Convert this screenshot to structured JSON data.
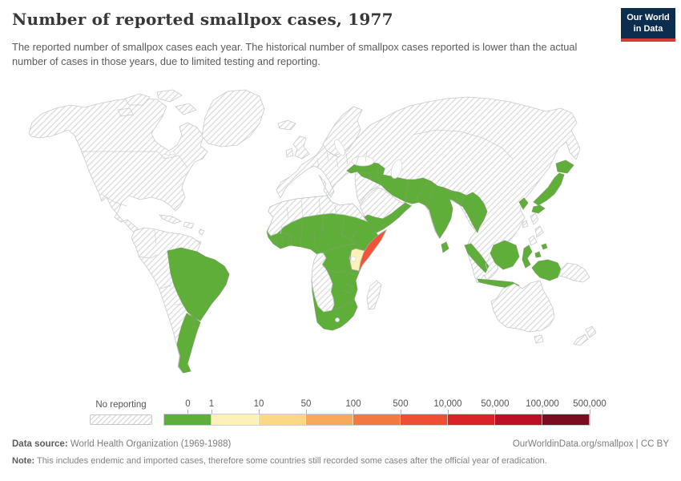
{
  "header": {
    "title": "Number of reported smallpox cases, 1977",
    "logo": {
      "line1": "Our World",
      "line2": "in Data",
      "bg": "#0d2d4e",
      "accent": "#d73a35"
    }
  },
  "subtitle": "The reported number of smallpox cases each year. The historical number of smallpox cases reported is lower than the actual number of cases in those years, due to limited testing and reporting.",
  "legend": {
    "no_reporting_label": "No reporting",
    "tick_labels": [
      "0",
      "1",
      "10",
      "50",
      "100",
      "500",
      "10,000",
      "50,000",
      "100,000",
      "500,000"
    ],
    "bin_colors": [
      "#5fae3a",
      "#fdf0b9",
      "#fbd884",
      "#f8a95b",
      "#f4793f",
      "#ee4f32",
      "#d8232b",
      "#ba1127",
      "#7c0c20"
    ]
  },
  "map": {
    "ocean_color": "#ffffff",
    "hatch_line_color": "#dcdcdc",
    "category_colors": {
      "zero": "#5fae3a",
      "1-10": "#fdf0b9",
      "500-10000": "#f2513a"
    },
    "regions": [
      {
        "id": "north-america",
        "category": "no-reporting"
      },
      {
        "id": "arctic-islands",
        "category": "no-reporting"
      },
      {
        "id": "greenland",
        "category": "no-reporting"
      },
      {
        "id": "iceland",
        "category": "no-reporting"
      },
      {
        "id": "caribbean",
        "category": "no-reporting"
      },
      {
        "id": "uk",
        "category": "no-reporting"
      },
      {
        "id": "ireland",
        "category": "no-reporting"
      },
      {
        "id": "south-america-andean",
        "category": "no-reporting"
      },
      {
        "id": "europe-asia",
        "category": "no-reporting"
      },
      {
        "id": "arabia",
        "category": "no-reporting"
      },
      {
        "id": "north-africa",
        "category": "no-reporting"
      },
      {
        "id": "central-west-africa",
        "category": "no-reporting"
      },
      {
        "id": "madagascar",
        "category": "no-reporting"
      },
      {
        "id": "philippines",
        "category": "no-reporting"
      },
      {
        "id": "taiwan",
        "category": "no-reporting"
      },
      {
        "id": "australia",
        "category": "no-reporting"
      },
      {
        "id": "tasmania",
        "category": "no-reporting"
      },
      {
        "id": "new-zealand",
        "category": "no-reporting"
      },
      {
        "id": "papua-new-guinea",
        "category": "no-reporting"
      },
      {
        "id": "brazil",
        "category": "zero"
      },
      {
        "id": "argentina-uruguay",
        "category": "zero"
      },
      {
        "id": "africa-green-belt",
        "category": "zero"
      },
      {
        "id": "middle-east-south-asia",
        "category": "zero"
      },
      {
        "id": "yemen-oman",
        "category": "zero"
      },
      {
        "id": "sri-lanka",
        "category": "zero"
      },
      {
        "id": "japan",
        "category": "zero"
      },
      {
        "id": "south-korea",
        "category": "zero"
      },
      {
        "id": "indonesia",
        "category": "zero"
      },
      {
        "id": "kenya",
        "category": "1-10"
      },
      {
        "id": "somalia",
        "category": "500-10000"
      }
    ]
  },
  "footer": {
    "datasource_label": "Data source:",
    "datasource_value": "World Health Organization (1969-1988)",
    "link_text": "OurWorldinData.org/smallpox | CC BY",
    "note_label": "Note:",
    "note_value": "This includes endemic and imported cases, therefore some countries still recorded some cases after the official year of eradication."
  },
  "chart_data": {
    "type": "heatmap",
    "subtype": "choropleth-world-map",
    "title": "Number of reported smallpox cases, 1977",
    "legend_bins": [
      {
        "label": "No reporting",
        "style": "hatched"
      },
      {
        "label": "0",
        "color": "#5fae3a"
      },
      {
        "label": "1-10",
        "color": "#fdf0b9"
      },
      {
        "label": "10-50",
        "color": "#fbd884"
      },
      {
        "label": "50-100",
        "color": "#f8a95b"
      },
      {
        "label": "100-500",
        "color": "#f4793f"
      },
      {
        "label": "500-10,000",
        "color": "#ee4f32"
      },
      {
        "label": "10,000-50,000",
        "color": "#d8232b"
      },
      {
        "label": "50,000-100,000",
        "color": "#ba1127"
      },
      {
        "label": "100,000-500,000",
        "color": "#7c0c20"
      }
    ],
    "series": [
      {
        "name": "0 cases (green)",
        "countries": [
          "Brazil",
          "Argentina",
          "Uruguay",
          "Senegal",
          "Guinea",
          "Sierra Leone",
          "Liberia",
          "Ivory Coast",
          "Ghana",
          "Togo",
          "Benin",
          "Nigeria",
          "Burkina Faso",
          "Mali",
          "Niger",
          "Chad",
          "Sudan",
          "Cameroon",
          "Central African Republic",
          "DR Congo",
          "Uganda",
          "Tanzania",
          "Zambia",
          "Malawi",
          "Mozambique",
          "Zimbabwe",
          "Botswana",
          "South Africa",
          "Ethiopia",
          "Turkey",
          "Syria",
          "Iraq",
          "Iran",
          "Afghanistan",
          "Pakistan",
          "India",
          "Nepal",
          "Bangladesh",
          "Myanmar",
          "Sri Lanka",
          "Yemen",
          "Oman",
          "Japan",
          "South Korea",
          "Indonesia"
        ]
      },
      {
        "name": "1-10 cases (pale yellow)",
        "countries": [
          "Kenya"
        ]
      },
      {
        "name": "500-10,000 cases (orange-red)",
        "countries": [
          "Somalia"
        ]
      },
      {
        "name": "No reporting (hatched)",
        "countries": [
          "United States",
          "Canada",
          "Mexico",
          "Central America",
          "Greenland",
          "Colombia",
          "Venezuela",
          "Peru",
          "Bolivia",
          "Chile",
          "Paraguay",
          "Ecuador",
          "Europe",
          "Soviet Union",
          "China",
          "Mongolia",
          "Southeast Asia mainland",
          "Saudi Arabia",
          "North Africa",
          "Angola",
          "Namibia",
          "Madagascar",
          "Philippines",
          "Australia",
          "New Zealand",
          "Papua New Guinea"
        ]
      }
    ]
  }
}
